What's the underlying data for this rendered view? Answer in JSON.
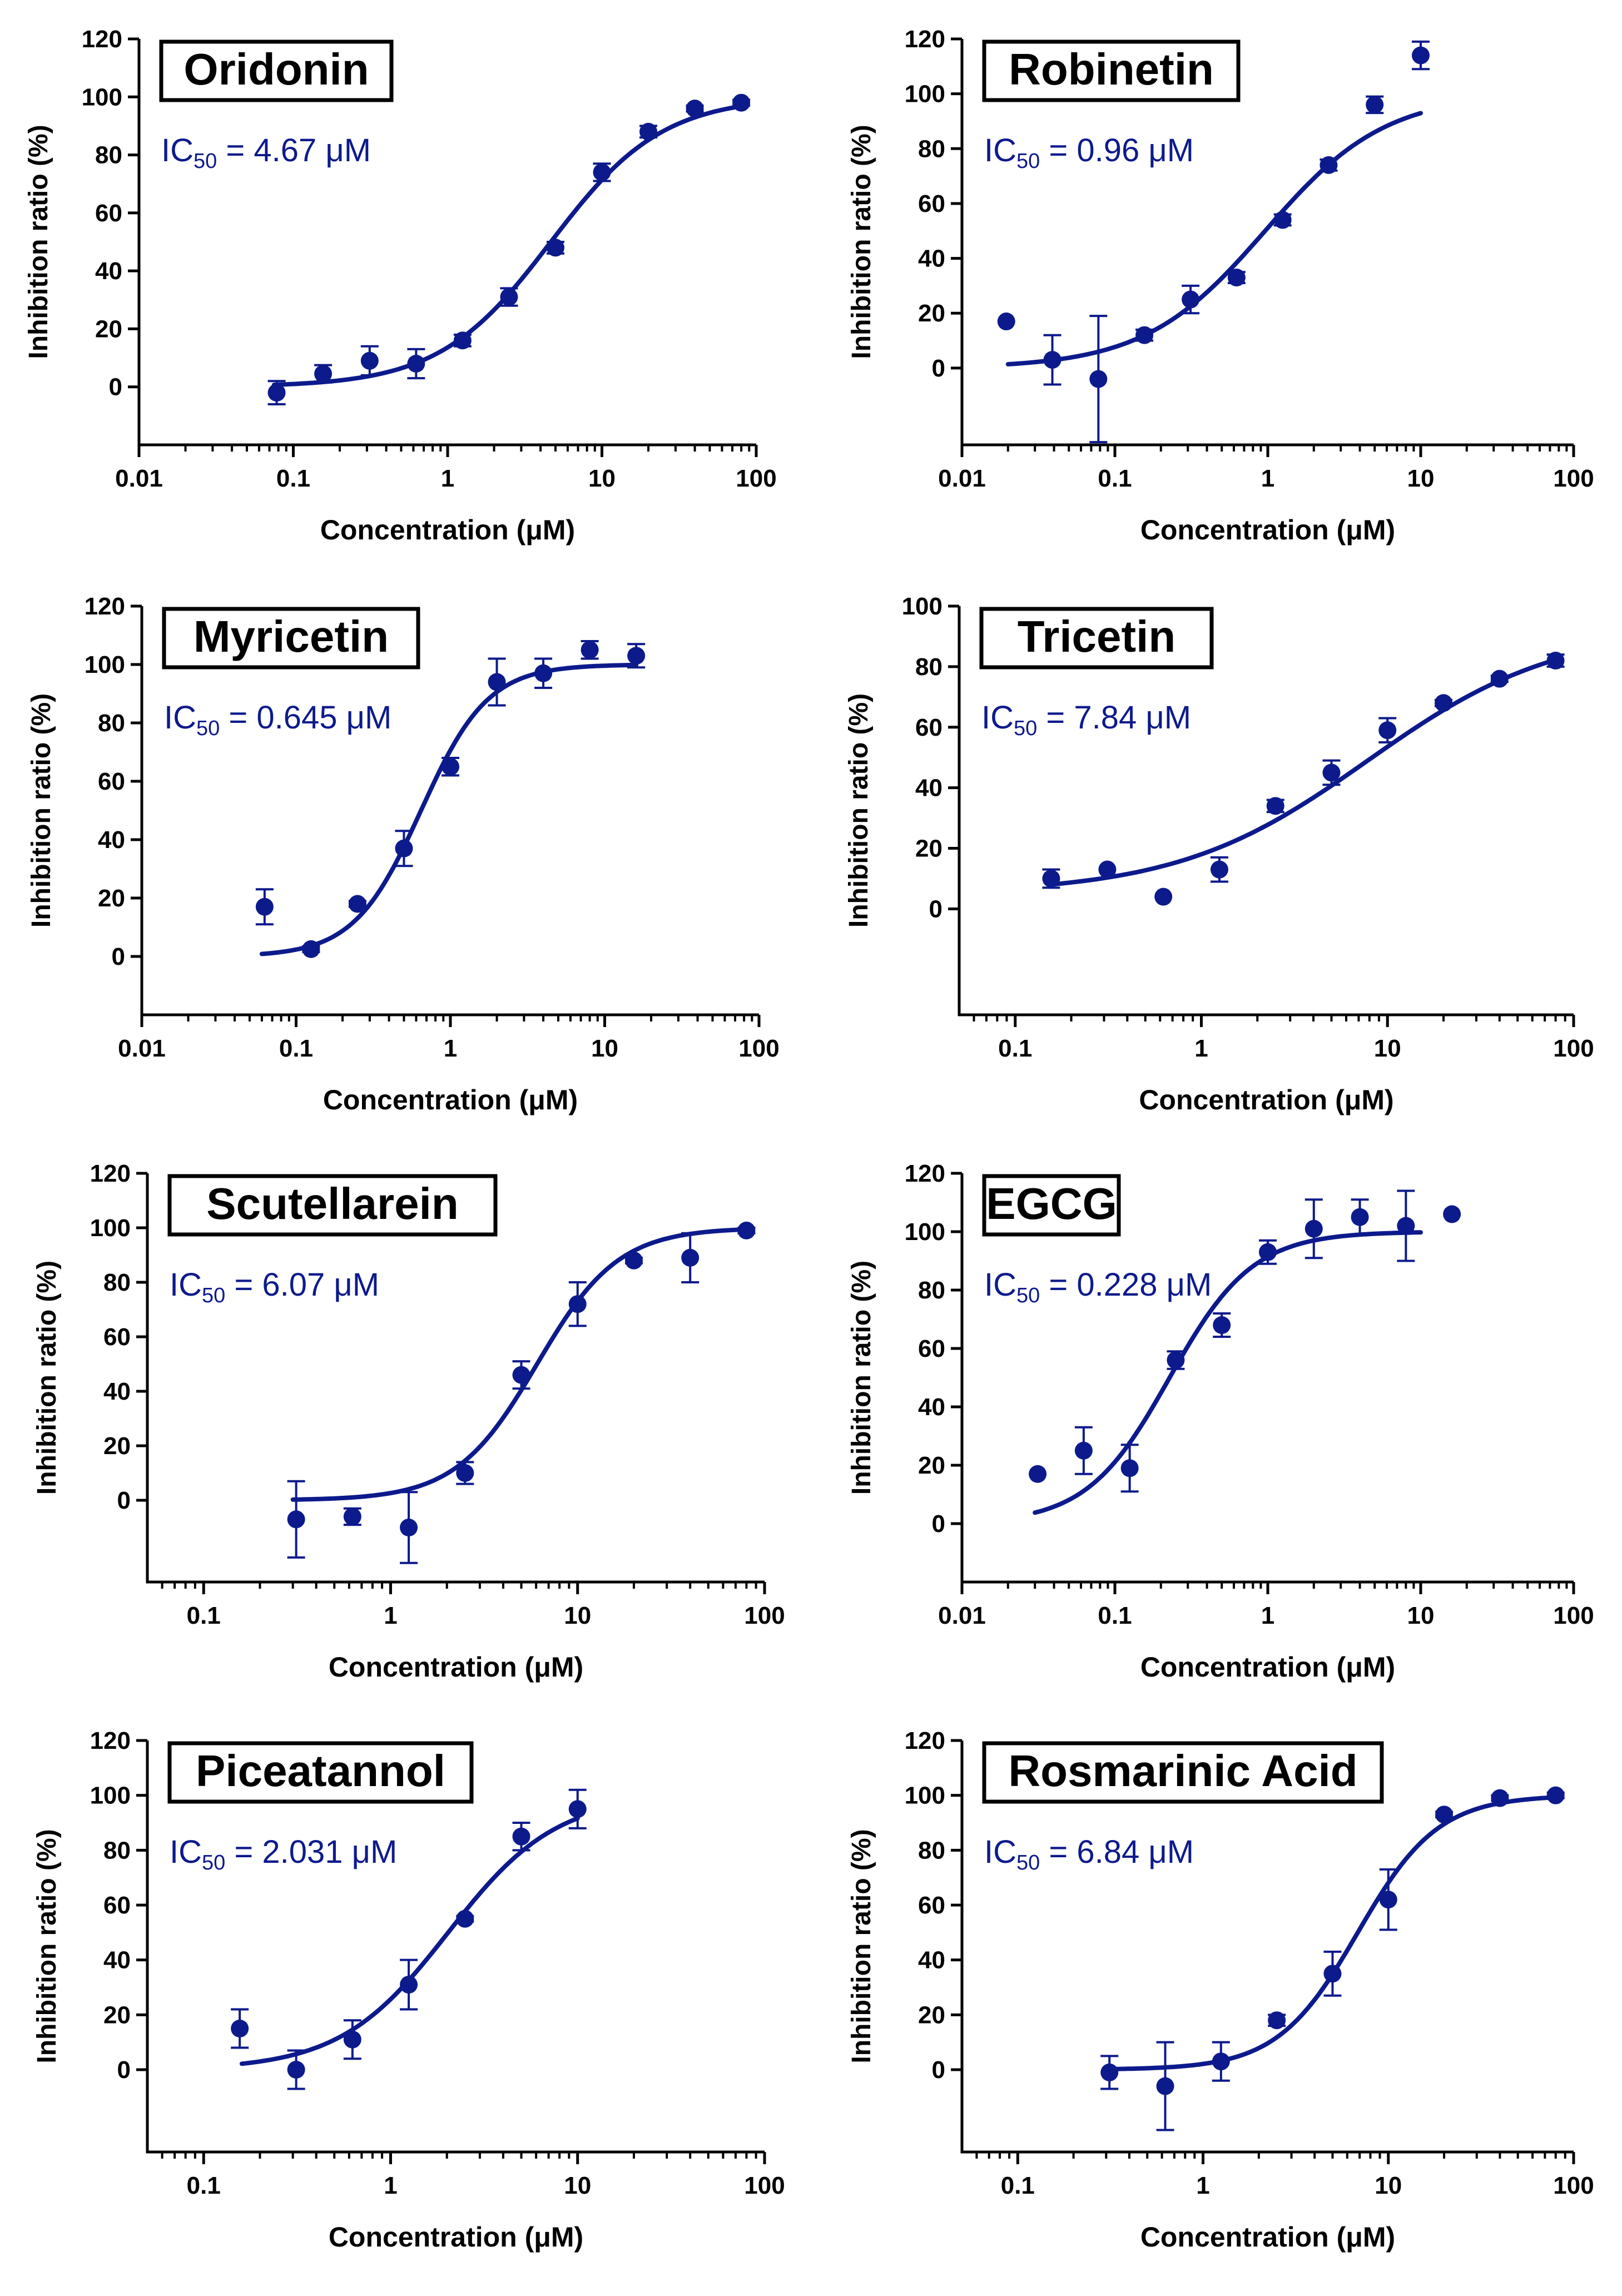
{
  "figure": {
    "line_color": "#0d1a8c",
    "axis_color": "#000000",
    "ylabel": "Inhibition ratio (%)",
    "xlabel": "Concentration (μM)"
  },
  "chart_data": [
    {
      "type": "scatter",
      "title": "Oridonin",
      "ic50_prefix": "IC",
      "ic50_sub": "50",
      "ic50_value": " = 4.67 μM",
      "ic50": 4.67,
      "top": 100,
      "bottom": 0,
      "hill": 1.2,
      "x_scale": "log",
      "xlim": [
        0.01,
        100
      ],
      "xticks": [
        0.01,
        0.1,
        1,
        10,
        100
      ],
      "xtick_labels": [
        "0.01",
        "0.1",
        "1",
        "10",
        "100"
      ],
      "ylim": [
        -20,
        120
      ],
      "yticks": [
        0,
        20,
        40,
        60,
        80,
        100,
        120
      ],
      "ytick_labels": [
        "0",
        "20",
        "40",
        "60",
        "80",
        "100",
        "120"
      ],
      "fit_range": [
        0.075,
        80
      ],
      "xlabel": "Concentration (μM)",
      "ylabel": "Inhibition ratio (%)",
      "points": [
        {
          "x": 0.078,
          "y": -2,
          "err": 4
        },
        {
          "x": 0.156,
          "y": 4.5,
          "err": 3
        },
        {
          "x": 0.3125,
          "y": 9,
          "err": 5
        },
        {
          "x": 0.625,
          "y": 8,
          "err": 5
        },
        {
          "x": 1.25,
          "y": 16,
          "err": 2
        },
        {
          "x": 2.5,
          "y": 31,
          "err": 3
        },
        {
          "x": 5,
          "y": 48,
          "err": 2
        },
        {
          "x": 10,
          "y": 74,
          "err": 3
        },
        {
          "x": 20,
          "y": 88,
          "err": 2
        },
        {
          "x": 40,
          "y": 96,
          "err": 1
        },
        {
          "x": 80,
          "y": 98,
          "err": 1
        }
      ]
    },
    {
      "type": "scatter",
      "title": "Robinetin",
      "ic50_prefix": "IC",
      "ic50_sub": "50",
      "ic50_value": " = 0.96 μM",
      "ic50": 0.96,
      "top": 100,
      "bottom": 0,
      "hill": 1.1,
      "x_scale": "log",
      "xlim": [
        0.01,
        100
      ],
      "xticks": [
        0.01,
        0.1,
        1,
        10,
        100
      ],
      "xtick_labels": [
        "0.01",
        "0.1",
        "1",
        "10",
        "100"
      ],
      "ylim": [
        -28,
        120
      ],
      "yticks": [
        0,
        20,
        40,
        60,
        80,
        100,
        120
      ],
      "ytick_labels": [
        "0",
        "20",
        "40",
        "60",
        "80",
        "100",
        "120"
      ],
      "fit_range": [
        0.02,
        10
      ],
      "xlabel": "Concentration (μM)",
      "ylabel": "Inhibition ratio (%)",
      "points": [
        {
          "x": 0.0195,
          "y": 17,
          "err": 0
        },
        {
          "x": 0.039,
          "y": 3,
          "err": 9
        },
        {
          "x": 0.078,
          "y": -4,
          "err": 23
        },
        {
          "x": 0.156,
          "y": 12,
          "err": 2
        },
        {
          "x": 0.3125,
          "y": 25,
          "err": 5
        },
        {
          "x": 0.625,
          "y": 33,
          "err": 2
        },
        {
          "x": 1.25,
          "y": 54,
          "err": 2
        },
        {
          "x": 2.5,
          "y": 74,
          "err": 2
        },
        {
          "x": 5,
          "y": 96,
          "err": 3
        },
        {
          "x": 10,
          "y": 114,
          "err": 5
        }
      ]
    },
    {
      "type": "scatter",
      "title": "Myricetin",
      "ic50_prefix": "IC",
      "ic50_sub": "50",
      "ic50_value": " = 0.645 μM",
      "ic50": 0.645,
      "top": 100,
      "bottom": 0,
      "hill": 2.0,
      "x_scale": "log",
      "xlim": [
        0.01,
        100
      ],
      "xticks": [
        0.01,
        0.1,
        1,
        10,
        100
      ],
      "xtick_labels": [
        "0.01",
        "0.1",
        "1",
        "10",
        "100"
      ],
      "ylim": [
        -20,
        120
      ],
      "yticks": [
        0,
        20,
        40,
        60,
        80,
        100,
        120
      ],
      "ytick_labels": [
        "0",
        "20",
        "40",
        "60",
        "80",
        "100",
        "120"
      ],
      "fit_range": [
        0.06,
        16
      ],
      "xlabel": "Concentration (μM)",
      "ylabel": "Inhibition ratio (%)",
      "points": [
        {
          "x": 0.0625,
          "y": 17,
          "err": 6
        },
        {
          "x": 0.125,
          "y": 2.5,
          "err": 1
        },
        {
          "x": 0.25,
          "y": 18,
          "err": 1
        },
        {
          "x": 0.5,
          "y": 37,
          "err": 6
        },
        {
          "x": 1,
          "y": 65,
          "err": 3
        },
        {
          "x": 2,
          "y": 94,
          "err": 8
        },
        {
          "x": 4,
          "y": 97,
          "err": 5
        },
        {
          "x": 8,
          "y": 105,
          "err": 3
        },
        {
          "x": 16,
          "y": 103,
          "err": 4
        }
      ]
    },
    {
      "type": "scatter",
      "title": "Tricetin",
      "ic50_prefix": "IC",
      "ic50_sub": "50",
      "ic50_value": " = 7.84 μM",
      "ic50": 7.84,
      "top": 93,
      "bottom": 5,
      "hill": 0.85,
      "x_scale": "log",
      "xlim": [
        0.05,
        100
      ],
      "xticks": [
        0.1,
        1,
        10,
        100
      ],
      "xtick_labels": [
        "0.1",
        "1",
        "10",
        "100"
      ],
      "ylim": [
        -35,
        100
      ],
      "yticks": [
        0,
        20,
        40,
        60,
        80,
        100
      ],
      "ytick_labels": [
        "0",
        "20",
        "40",
        "60",
        "80",
        "100"
      ],
      "fit_range": [
        0.16,
        80
      ],
      "xlabel": "Concentration (μM)",
      "ylabel": "Inhibition ratio (%)",
      "points": [
        {
          "x": 0.156,
          "y": 10,
          "err": 3
        },
        {
          "x": 0.3125,
          "y": 13,
          "err": 0
        },
        {
          "x": 0.625,
          "y": 4,
          "err": 0
        },
        {
          "x": 1.25,
          "y": 13,
          "err": 4
        },
        {
          "x": 2.5,
          "y": 34,
          "err": 2
        },
        {
          "x": 5,
          "y": 45,
          "err": 4
        },
        {
          "x": 10,
          "y": 59,
          "err": 4
        },
        {
          "x": 20,
          "y": 68,
          "err": 1
        },
        {
          "x": 40,
          "y": 76,
          "err": 1
        },
        {
          "x": 80,
          "y": 82,
          "err": 2
        }
      ]
    },
    {
      "type": "scatter",
      "title": "Scutellarein",
      "ic50_prefix": "IC",
      "ic50_sub": "50",
      "ic50_value": " = 6.07 μM",
      "ic50": 6.07,
      "top": 100,
      "bottom": 0,
      "hill": 2.0,
      "x_scale": "log",
      "xlim": [
        0.05,
        100
      ],
      "xticks": [
        0.1,
        1,
        10,
        100
      ],
      "xtick_labels": [
        "0.1",
        "1",
        "10",
        "100"
      ],
      "ylim": [
        -30,
        120
      ],
      "yticks": [
        0,
        20,
        40,
        60,
        80,
        100,
        120
      ],
      "ytick_labels": [
        "0",
        "20",
        "40",
        "60",
        "80",
        "100",
        "120"
      ],
      "fit_range": [
        0.3,
        80
      ],
      "xlabel": "Concentration (μM)",
      "ylabel": "Inhibition ratio (%)",
      "points": [
        {
          "x": 0.3125,
          "y": -7,
          "err": 14
        },
        {
          "x": 0.625,
          "y": -6,
          "err": 3
        },
        {
          "x": 1.25,
          "y": -10,
          "err": 13
        },
        {
          "x": 2.5,
          "y": 10,
          "err": 4
        },
        {
          "x": 5,
          "y": 46,
          "err": 5
        },
        {
          "x": 10,
          "y": 72,
          "err": 8
        },
        {
          "x": 20,
          "y": 88,
          "err": 1
        },
        {
          "x": 40,
          "y": 89,
          "err": 9
        },
        {
          "x": 80,
          "y": 99,
          "err": 1
        }
      ]
    },
    {
      "type": "scatter",
      "title": "EGCG",
      "ic50_prefix": "IC",
      "ic50_sub": "50",
      "ic50_value": " = 0.228 μM",
      "ic50": 0.228,
      "top": 100,
      "bottom": 0,
      "hill": 1.6,
      "x_scale": "log",
      "xlim": [
        0.01,
        100
      ],
      "xticks": [
        0.01,
        0.1,
        1,
        10,
        100
      ],
      "xtick_labels": [
        "0.01",
        "0.1",
        "1",
        "10",
        "100"
      ],
      "ylim": [
        -20,
        120
      ],
      "yticks": [
        0,
        20,
        40,
        60,
        80,
        100,
        120
      ],
      "ytick_labels": [
        "0",
        "20",
        "40",
        "60",
        "80",
        "100",
        "120"
      ],
      "fit_range": [
        0.03,
        10
      ],
      "xlabel": "Concentration (μM)",
      "ylabel": "Inhibition ratio (%)",
      "points": [
        {
          "x": 0.03125,
          "y": 17,
          "err": 0
        },
        {
          "x": 0.0625,
          "y": 25,
          "err": 8
        },
        {
          "x": 0.125,
          "y": 19,
          "err": 8
        },
        {
          "x": 0.25,
          "y": 56,
          "err": 3
        },
        {
          "x": 0.5,
          "y": 68,
          "err": 4
        },
        {
          "x": 1,
          "y": 93,
          "err": 4
        },
        {
          "x": 2,
          "y": 101,
          "err": 10
        },
        {
          "x": 4,
          "y": 105,
          "err": 6
        },
        {
          "x": 8,
          "y": 102,
          "err": 12
        },
        {
          "x": 16,
          "y": 106,
          "err": 0
        }
      ]
    },
    {
      "type": "scatter",
      "title": "Piceatannol",
      "ic50_prefix": "IC",
      "ic50_sub": "50",
      "ic50_value": " = 2.031 μM",
      "ic50": 2.031,
      "top": 100,
      "bottom": 0,
      "hill": 1.5,
      "x_scale": "log",
      "xlim": [
        0.05,
        100
      ],
      "xticks": [
        0.1,
        1,
        10,
        100
      ],
      "xtick_labels": [
        "0.1",
        "1",
        "10",
        "100"
      ],
      "ylim": [
        -30,
        120
      ],
      "yticks": [
        0,
        20,
        40,
        60,
        80,
        100,
        120
      ],
      "ytick_labels": [
        "0",
        "20",
        "40",
        "60",
        "80",
        "100",
        "120"
      ],
      "fit_range": [
        0.16,
        10
      ],
      "xlabel": "Concentration (μM)",
      "ylabel": "Inhibition ratio (%)",
      "points": [
        {
          "x": 0.156,
          "y": 15,
          "err": 7
        },
        {
          "x": 0.3125,
          "y": 0,
          "err": 7
        },
        {
          "x": 0.625,
          "y": 11,
          "err": 7
        },
        {
          "x": 1.25,
          "y": 31,
          "err": 9
        },
        {
          "x": 2.5,
          "y": 55,
          "err": 1
        },
        {
          "x": 5,
          "y": 85,
          "err": 5
        },
        {
          "x": 10,
          "y": 95,
          "err": 7
        }
      ]
    },
    {
      "type": "scatter",
      "title": "Rosmarinic Acid",
      "ic50_prefix": "IC",
      "ic50_sub": "50",
      "ic50_value": " = 6.84 μM",
      "ic50": 6.84,
      "top": 100,
      "bottom": 0,
      "hill": 2.0,
      "x_scale": "log",
      "xlim": [
        0.05,
        100
      ],
      "xticks": [
        0.1,
        1,
        10,
        100
      ],
      "xtick_labels": [
        "0.1",
        "1",
        "10",
        "100"
      ],
      "ylim": [
        -30,
        120
      ],
      "yticks": [
        0,
        20,
        40,
        60,
        80,
        100,
        120
      ],
      "ytick_labels": [
        "0",
        "20",
        "40",
        "60",
        "80",
        "100",
        "120"
      ],
      "fit_range": [
        0.3,
        80
      ],
      "xlabel": "Concentration (μM)",
      "ylabel": "Inhibition ratio (%)",
      "points": [
        {
          "x": 0.3125,
          "y": -1,
          "err": 6
        },
        {
          "x": 0.625,
          "y": -6,
          "err": 16
        },
        {
          "x": 1.25,
          "y": 3,
          "err": 7
        },
        {
          "x": 2.5,
          "y": 18,
          "err": 2
        },
        {
          "x": 5,
          "y": 35,
          "err": 8
        },
        {
          "x": 10,
          "y": 62,
          "err": 11
        },
        {
          "x": 20,
          "y": 93,
          "err": 1
        },
        {
          "x": 40,
          "y": 99,
          "err": 1
        },
        {
          "x": 80,
          "y": 100,
          "err": 1
        }
      ]
    }
  ]
}
